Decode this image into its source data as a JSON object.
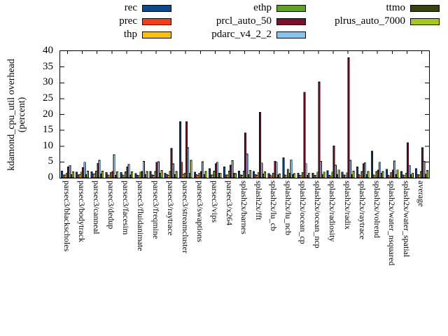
{
  "figure": {
    "ylabel_line1": "kdamond_cpu_util overhead",
    "ylabel_line2": "(percent)"
  },
  "chart_data": {
    "type": "bar",
    "title": "",
    "xlabel": "",
    "ylabel": "kdamond_cpu_util overhead (percent)",
    "ylim": [
      0,
      40
    ],
    "yticks": [
      0,
      5,
      10,
      15,
      20,
      25,
      30,
      35,
      40
    ],
    "grid": false,
    "legend_position": "top",
    "categories": [
      "parsec3/blackscholes",
      "parsec3/bodytrack",
      "parsec3/canneal",
      "parsec3/dedup",
      "parsec3/facesim",
      "parsec3/fluidanimate",
      "parsec3/freqmine",
      "parsec3/raytrace",
      "parsec3/streamcluster",
      "parsec3/swaptions",
      "parsec3/vips",
      "parsec3/x264",
      "splash2x/barnes",
      "splash2x/fft",
      "splash2x/lu_cb",
      "splash2x/lu_ncb",
      "splash2x/ocean_cp",
      "splash2x/ocean_ncp",
      "splash2x/radiosity",
      "splash2x/radix",
      "splash2x/raytrace",
      "splash2x/volrend",
      "splash2x/water_nsquared",
      "splash2x/water_spatial",
      "average"
    ],
    "series": [
      {
        "name": "rec",
        "color": "#0b4a8c",
        "values": [
          2.1,
          1.8,
          1.9,
          1.7,
          1.7,
          1.3,
          2.0,
          1.5,
          17.7,
          1.8,
          2.9,
          3.4,
          2.1,
          2.0,
          1.4,
          6.3,
          1.5,
          1.5,
          2.2,
          1.8,
          3.4,
          8.4,
          2.7,
          2.0,
          2.9
        ]
      },
      {
        "name": "prec",
        "color": "#fb3c10",
        "values": [
          0.9,
          0.9,
          1.2,
          0.9,
          0.9,
          0.8,
          0.9,
          1.0,
          4.9,
          1.0,
          0.9,
          0.9,
          0.9,
          1.0,
          0.9,
          0.9,
          0.8,
          0.8,
          0.8,
          0.9,
          1.0,
          0.9,
          0.8,
          0.9,
          1.0
        ]
      },
      {
        "name": "thp",
        "color": "#fcc10d",
        "values": [
          0.9,
          1.0,
          1.2,
          0.7,
          0.7,
          0.7,
          0.8,
          0.8,
          1.0,
          0.8,
          0.9,
          0.9,
          0.8,
          0.8,
          0.6,
          0.7,
          0.7,
          0.7,
          0.6,
          0.7,
          0.7,
          0.7,
          0.6,
          0.7,
          0.9
        ]
      },
      {
        "name": "ethp",
        "color": "#5ea321",
        "values": [
          1.5,
          1.8,
          2.1,
          1.7,
          1.9,
          1.8,
          2.0,
          2.0,
          1.5,
          1.5,
          2.1,
          2.1,
          2.1,
          1.7,
          1.5,
          2.7,
          1.7,
          1.8,
          1.8,
          1.6,
          2.0,
          2.0,
          1.7,
          1.5,
          2.0
        ]
      },
      {
        "name": "prcl_auto_50",
        "color": "#7d0f2a",
        "values": [
          3.4,
          3.2,
          4.6,
          2.0,
          3.4,
          2.0,
          4.9,
          9.3,
          17.7,
          2.0,
          4.4,
          4.0,
          14.2,
          20.7,
          5.2,
          1.5,
          27.0,
          30.3,
          10.1,
          37.9,
          4.4,
          2.5,
          2.5,
          11.1,
          9.5
        ]
      },
      {
        "name": "pdarc_v4_2_2",
        "color": "#85c6f0",
        "values": [
          3.9,
          4.9,
          5.5,
          7.3,
          4.2,
          5.2,
          5.1,
          4.4,
          9.5,
          5.1,
          4.9,
          5.4,
          7.5,
          4.7,
          4.9,
          5.7,
          4.5,
          5.2,
          4.0,
          5.5,
          4.8,
          4.9,
          5.3,
          3.9,
          5.2
        ]
      },
      {
        "name": "ttmo",
        "color": "#39430e",
        "values": [
          1.0,
          1.0,
          1.2,
          0.8,
          0.9,
          1.0,
          1.5,
          1.0,
          1.5,
          1.0,
          1.5,
          1.5,
          1.0,
          1.2,
          0.9,
          1.0,
          0.8,
          1.0,
          1.0,
          1.0,
          1.0,
          1.5,
          1.0,
          1.0,
          1.1
        ]
      },
      {
        "name": "plrus_auto_7000",
        "color": "#a7c90e",
        "values": [
          1.9,
          2.1,
          2.1,
          1.9,
          1.9,
          2.0,
          2.3,
          2.0,
          5.5,
          2.0,
          1.5,
          1.3,
          2.3,
          1.9,
          1.2,
          1.3,
          1.5,
          1.8,
          2.5,
          2.1,
          2.0,
          2.0,
          2.5,
          1.5,
          2.3
        ]
      }
    ],
    "legend_columns": [
      [
        0,
        1,
        2
      ],
      [
        3,
        4,
        5
      ],
      [
        6,
        7
      ]
    ]
  }
}
